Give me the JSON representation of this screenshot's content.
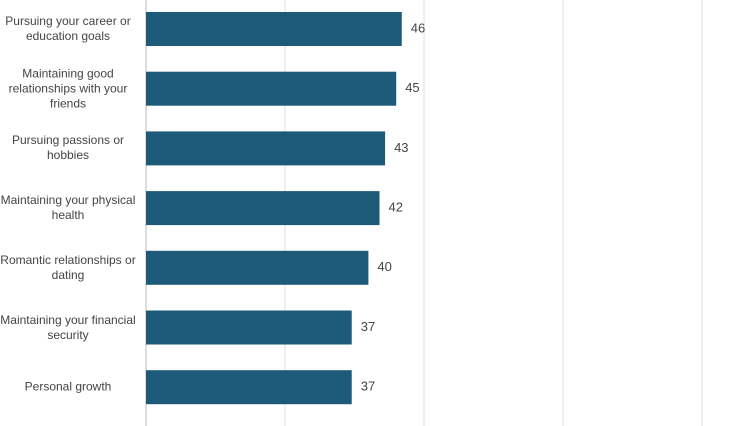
{
  "chart_data": {
    "type": "hbar",
    "categories": [
      "Pursuing your career or education goals",
      "Maintaining good relationships with your friends",
      "Pursuing passions or hobbies",
      "Maintaining your physical health",
      "Romantic relationships or dating",
      "Maintaining your financial security",
      "Personal growth"
    ],
    "values": [
      46,
      45,
      43,
      42,
      40,
      37,
      37
    ],
    "color": "#1d5a7a",
    "xlim": [
      0,
      100
    ],
    "xgrid": [
      0,
      25,
      50,
      75,
      100
    ],
    "grid": true
  }
}
